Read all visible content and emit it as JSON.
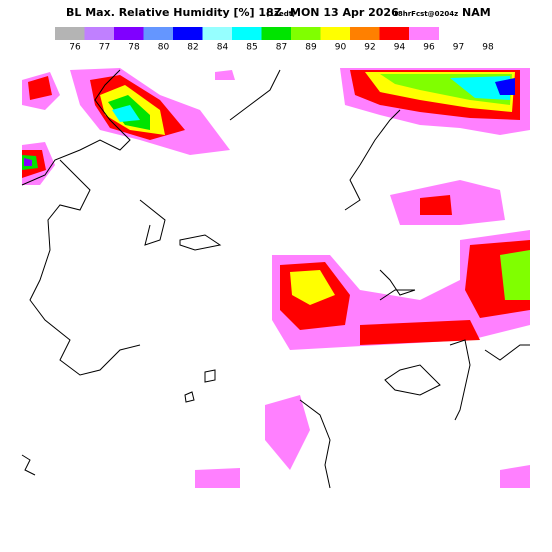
{
  "header": {
    "title": "BL Max. Relative Humidity [%] 18Z",
    "run": "(13edt)",
    "date": "MON 13 Apr 2026",
    "forecast": "18hrFcst@0204z",
    "model": "NAM"
  },
  "legend": {
    "labels": [
      76,
      77,
      78,
      80,
      82,
      84,
      85,
      87,
      89,
      90,
      92,
      94,
      96,
      97,
      98
    ],
    "colors": [
      "#b4b4b4",
      "#c080ff",
      "#8000ff",
      "#6496ff",
      "#0000ff",
      "#96ffff",
      "#00ffff",
      "#00e400",
      "#80ff00",
      "#ffff00",
      "#ff8000",
      "#ff0000",
      "#ff80ff"
    ]
  }
}
